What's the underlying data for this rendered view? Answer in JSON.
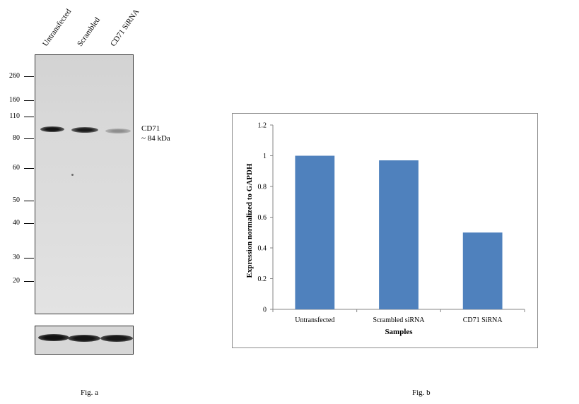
{
  "fig_a": {
    "lane_labels": [
      "Untransfected",
      "Scrambled",
      "CD71 SiRNA"
    ],
    "mw_markers": [
      "260",
      "160",
      "110",
      "80",
      "60",
      "50",
      "40",
      "30",
      "20"
    ],
    "target_label": "CD71",
    "target_size": "~ 84 kDa",
    "caption": "Fig. a"
  },
  "fig_b": {
    "caption": "Fig. b"
  },
  "chart_data": {
    "type": "bar",
    "categories": [
      "Untransfected",
      "Scrambled siRNA",
      "CD71 SiRNA"
    ],
    "values": [
      1.0,
      0.97,
      0.5
    ],
    "title": "",
    "xlabel": "Samples",
    "ylabel": "Expression normalized to GAPDH",
    "ylim": [
      0,
      1.2
    ],
    "yticks": [
      "0",
      "0.2",
      "0.4",
      "0.6",
      "0.8",
      "1",
      "1.2"
    ],
    "color": "#4f81bd",
    "grid": false,
    "legend": "none"
  }
}
